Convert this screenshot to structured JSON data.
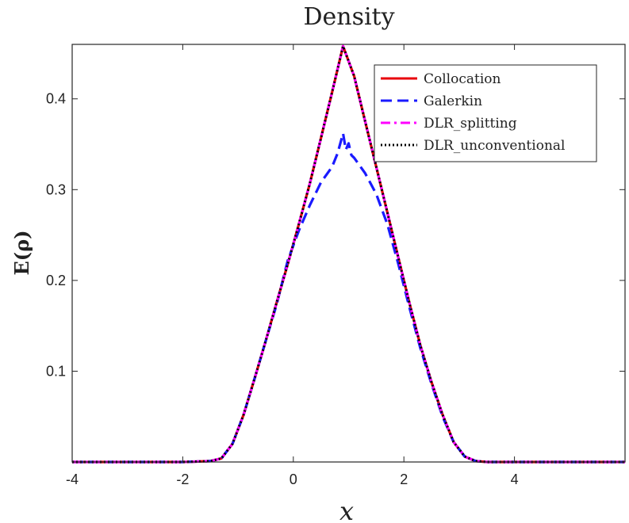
{
  "chart_data": {
    "type": "line",
    "title": "Density",
    "xlabel": "x",
    "ylabel": "E(ρ)",
    "xlim": [
      -4,
      6
    ],
    "ylim": [
      0,
      0.46
    ],
    "x_ticks": [
      -4,
      -2,
      0,
      2,
      4
    ],
    "x_tick_labels": [
      "-4",
      "-2",
      "0",
      "2",
      "4"
    ],
    "y_ticks": [
      0.1,
      0.2,
      0.3,
      0.4
    ],
    "y_tick_labels": [
      "0.1",
      "0.2",
      "0.3",
      "0.4"
    ],
    "grid": false,
    "legend_position": "top-right",
    "series": [
      {
        "name": "Collocation",
        "color": "#e8000b",
        "style": "solid",
        "x": [
          -4,
          -2,
          -1.5,
          -1.3,
          -1.1,
          -0.9,
          -0.7,
          -0.5,
          -0.3,
          -0.1,
          0.1,
          0.3,
          0.5,
          0.7,
          0.9,
          1.1,
          1.3,
          1.5,
          1.7,
          1.9,
          2.1,
          2.3,
          2.5,
          2.7,
          2.9,
          3.1,
          3.3,
          3.5,
          4,
          6
        ],
        "y": [
          0,
          0,
          0.001,
          0.004,
          0.02,
          0.052,
          0.092,
          0.133,
          0.176,
          0.218,
          0.262,
          0.307,
          0.357,
          0.407,
          0.458,
          0.425,
          0.375,
          0.325,
          0.275,
          0.225,
          0.175,
          0.128,
          0.088,
          0.052,
          0.022,
          0.006,
          0.001,
          0,
          0,
          0
        ]
      },
      {
        "name": "Galerkin",
        "color": "#1a1aff",
        "style": "dashed",
        "x": [
          -4,
          -2,
          -1.5,
          -1.3,
          -1.1,
          -0.9,
          -0.7,
          -0.5,
          -0.3,
          -0.1,
          0.1,
          0.3,
          0.5,
          0.7,
          0.8,
          0.9,
          0.95,
          1.0,
          1.05,
          1.1,
          1.3,
          1.5,
          1.7,
          1.9,
          2.1,
          2.3,
          2.5,
          2.7,
          2.9,
          3.1,
          3.3,
          3.5,
          4,
          6
        ],
        "y": [
          0,
          0,
          0.001,
          0.004,
          0.02,
          0.052,
          0.092,
          0.133,
          0.174,
          0.222,
          0.255,
          0.283,
          0.308,
          0.325,
          0.34,
          0.362,
          0.344,
          0.351,
          0.338,
          0.335,
          0.318,
          0.295,
          0.262,
          0.218,
          0.17,
          0.125,
          0.086,
          0.05,
          0.022,
          0.006,
          0.001,
          0,
          0,
          0
        ]
      },
      {
        "name": "DLR_splitting",
        "color": "#ff00ff",
        "style": "dashdot",
        "x": [
          -4,
          -2,
          -1.5,
          -1.3,
          -1.1,
          -0.9,
          -0.7,
          -0.5,
          -0.3,
          -0.1,
          0.1,
          0.3,
          0.5,
          0.7,
          0.9,
          1.1,
          1.3,
          1.5,
          1.7,
          1.9,
          2.1,
          2.3,
          2.5,
          2.7,
          2.9,
          3.1,
          3.3,
          3.5,
          4,
          6
        ],
        "y": [
          0,
          0,
          0.001,
          0.004,
          0.02,
          0.052,
          0.092,
          0.133,
          0.176,
          0.218,
          0.262,
          0.307,
          0.357,
          0.407,
          0.458,
          0.425,
          0.375,
          0.325,
          0.275,
          0.225,
          0.175,
          0.128,
          0.088,
          0.052,
          0.022,
          0.006,
          0.001,
          0,
          0,
          0
        ]
      },
      {
        "name": "DLR_unconventional",
        "color": "#000000",
        "style": "dotted",
        "x": [
          -4,
          -2,
          -1.5,
          -1.3,
          -1.1,
          -0.9,
          -0.7,
          -0.5,
          -0.3,
          -0.1,
          0.1,
          0.3,
          0.5,
          0.7,
          0.9,
          1.1,
          1.3,
          1.5,
          1.7,
          1.9,
          2.1,
          2.3,
          2.5,
          2.7,
          2.9,
          3.1,
          3.3,
          3.5,
          4,
          6
        ],
        "y": [
          0,
          0,
          0.001,
          0.004,
          0.02,
          0.052,
          0.092,
          0.133,
          0.176,
          0.218,
          0.262,
          0.307,
          0.357,
          0.407,
          0.458,
          0.425,
          0.375,
          0.325,
          0.275,
          0.225,
          0.175,
          0.128,
          0.088,
          0.052,
          0.022,
          0.006,
          0.001,
          0,
          0,
          0
        ]
      }
    ]
  }
}
